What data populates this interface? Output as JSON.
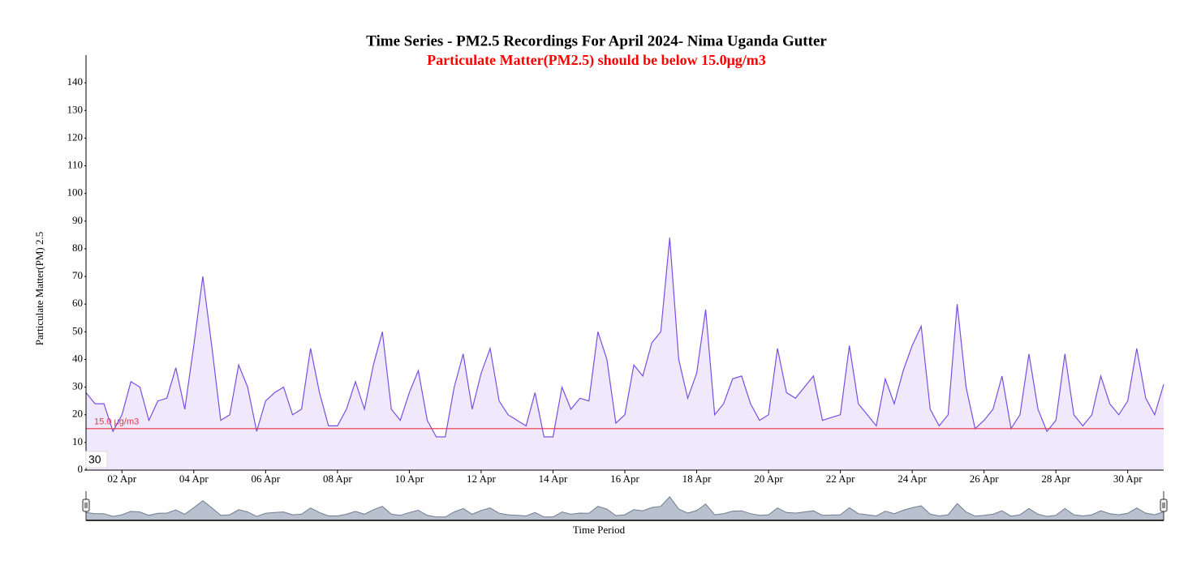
{
  "chart_data": {
    "type": "area",
    "title": "Time Series - PM2.5 Recordings For April 2024- Nima Uganda Gutter",
    "subtitle": "Particulate Matter(PM2.5) should be below 15.0μg/m3",
    "y_label": "Particulate Matter(PM) 2.5",
    "x_label": "Time Period",
    "zoom_label": "30",
    "color": "#7b4ee0",
    "fill": "#efe9fb",
    "threshold": {
      "value": 15,
      "label": "15.0 μg/m3",
      "color": "#e8304a"
    },
    "x": [
      1,
      1.25,
      1.5,
      1.75,
      2,
      2.25,
      2.5,
      2.75,
      3,
      3.25,
      3.5,
      3.75,
      4,
      4.25,
      4.5,
      4.75,
      5,
      5.25,
      5.5,
      5.75,
      6,
      6.25,
      6.5,
      6.75,
      7,
      7.25,
      7.5,
      7.75,
      8,
      8.25,
      8.5,
      8.75,
      9,
      9.25,
      9.5,
      9.75,
      10,
      10.25,
      10.5,
      10.75,
      11,
      11.25,
      11.5,
      11.75,
      12,
      12.25,
      12.5,
      12.75,
      13,
      13.25,
      13.5,
      13.75,
      14,
      14.25,
      14.5,
      14.75,
      15,
      15.25,
      15.5,
      15.75,
      16,
      16.25,
      16.5,
      16.75,
      17,
      17.25,
      17.5,
      17.75,
      18,
      18.25,
      18.5,
      18.75,
      19,
      19.25,
      19.5,
      19.75,
      20,
      20.25,
      20.5,
      20.75,
      21,
      21.25,
      21.5,
      21.75,
      22,
      22.25,
      22.5,
      22.75,
      23,
      23.25,
      23.5,
      23.75,
      24,
      24.25,
      24.5,
      24.75,
      25,
      25.25,
      25.5,
      25.75,
      26,
      26.25,
      26.5,
      26.75,
      27,
      27.25,
      27.5,
      27.75,
      28,
      28.25,
      28.5,
      28.75,
      29,
      29.25,
      29.5,
      29.75,
      30,
      30.25,
      30.5,
      30.75,
      31
    ],
    "values": [
      28,
      24,
      24,
      14,
      20,
      32,
      30,
      18,
      25,
      26,
      37,
      22,
      45,
      70,
      45,
      18,
      20,
      38,
      30,
      14,
      25,
      28,
      30,
      20,
      22,
      44,
      28,
      16,
      16,
      22,
      32,
      22,
      38,
      50,
      22,
      18,
      28,
      36,
      18,
      12,
      12,
      30,
      42,
      22,
      35,
      44,
      25,
      20,
      18,
      16,
      28,
      12,
      12,
      30,
      22,
      26,
      25,
      50,
      40,
      17,
      20,
      38,
      34,
      46,
      50,
      84,
      40,
      26,
      35,
      58,
      20,
      24,
      33,
      34,
      24,
      18,
      20,
      44,
      28,
      26,
      30,
      34,
      18,
      19,
      20,
      45,
      24,
      20,
      16,
      33,
      24,
      36,
      45,
      52,
      22,
      16,
      20,
      60,
      30,
      15,
      18,
      22,
      34,
      15,
      20,
      42,
      22,
      14,
      18,
      42,
      20,
      16,
      20,
      34,
      24,
      20,
      25,
      44,
      26,
      20,
      31
    ],
    "xlim": [
      1,
      31
    ],
    "xticks": [
      {
        "value": 2,
        "label": "02 Apr"
      },
      {
        "value": 4,
        "label": "04 Apr"
      },
      {
        "value": 6,
        "label": "06 Apr"
      },
      {
        "value": 8,
        "label": "08 Apr"
      },
      {
        "value": 10,
        "label": "10 Apr"
      },
      {
        "value": 12,
        "label": "12 Apr"
      },
      {
        "value": 14,
        "label": "14 Apr"
      },
      {
        "value": 16,
        "label": "16 Apr"
      },
      {
        "value": 18,
        "label": "18 Apr"
      },
      {
        "value": 20,
        "label": "20 Apr"
      },
      {
        "value": 22,
        "label": "22 Apr"
      },
      {
        "value": 24,
        "label": "24 Apr"
      },
      {
        "value": 26,
        "label": "26 Apr"
      },
      {
        "value": 28,
        "label": "28 Apr"
      },
      {
        "value": 30,
        "label": "30 Apr"
      }
    ],
    "ylim": [
      0,
      150
    ],
    "yticks": [
      0,
      10,
      20,
      30,
      40,
      50,
      60,
      70,
      80,
      90,
      100,
      110,
      120,
      130,
      140
    ],
    "navigator": true,
    "navigator_color": "#9aa6b8"
  }
}
